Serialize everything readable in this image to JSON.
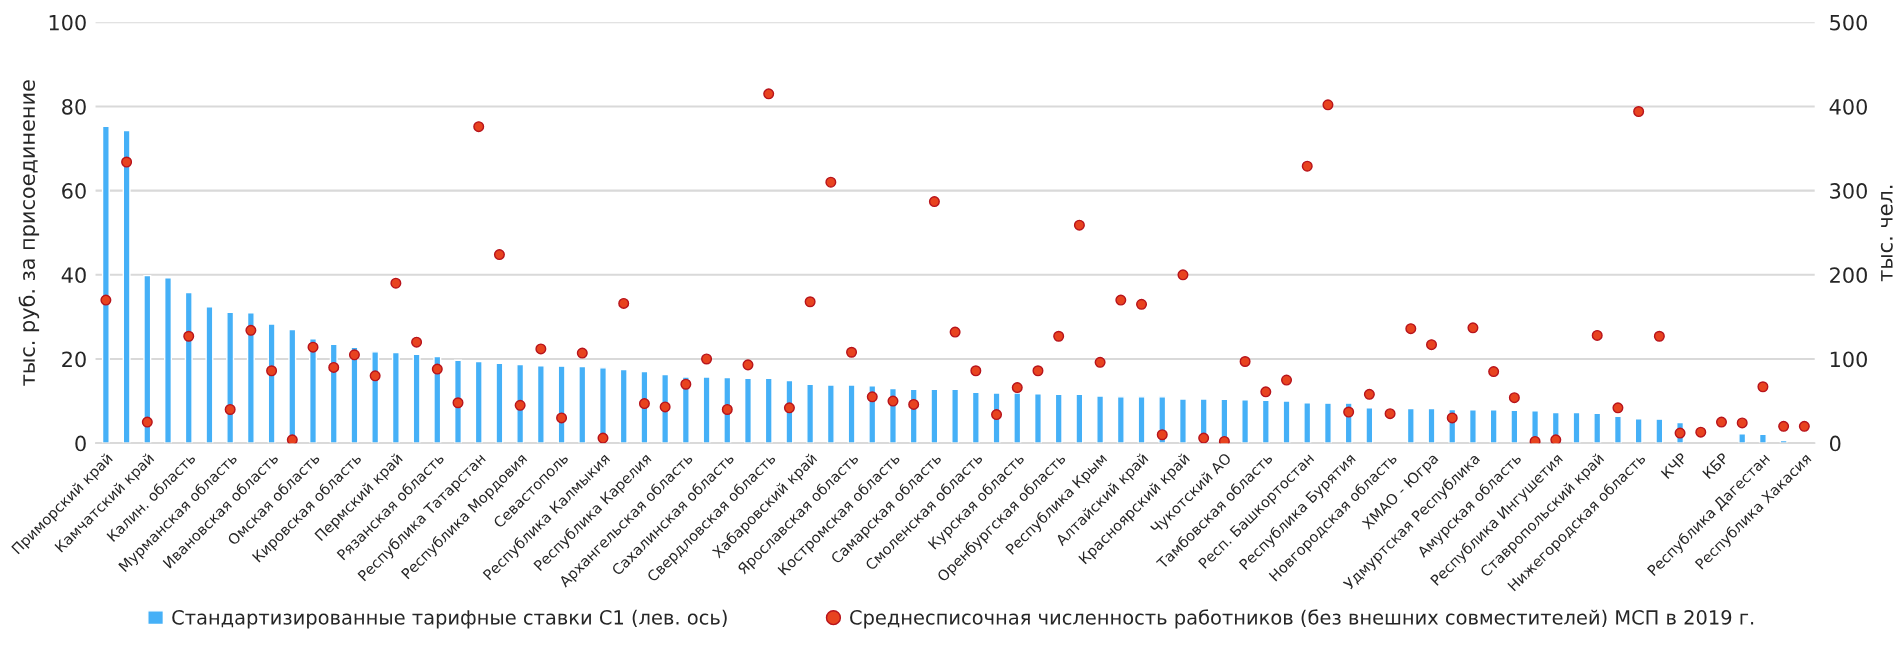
{
  "chart_data": {
    "type": "bar",
    "categories": [
      "Приморский край",
      null,
      "Камчатский край",
      null,
      "Калин. область",
      null,
      "Мурманская область",
      null,
      "Ивановская область",
      null,
      "Омская область",
      null,
      "Кировская область",
      null,
      "Пермский край",
      null,
      "Рязанская область",
      null,
      "Республика Татарстан",
      null,
      "Республика Мордовия",
      null,
      "Севастополь",
      null,
      "Республика Калмыкия",
      null,
      "Республика Карелия",
      null,
      "Архангельская область",
      null,
      "Сахалинская область",
      null,
      "Свердловская область",
      null,
      "Хабаровский край",
      null,
      "Ярославская область",
      null,
      "Костромская область",
      null,
      "Самарская область",
      null,
      "Смоленская область",
      null,
      "Курская область",
      null,
      "Оренбургская область",
      null,
      "Республика Крым",
      null,
      "Алтайский край",
      null,
      "Красноярский край",
      null,
      "Чукотский АО",
      null,
      "Тамбовская область",
      null,
      "Респ. Башкортостан",
      null,
      "Республика Бурятия",
      null,
      "Новгородская область",
      null,
      "ХМАО - Югра",
      null,
      "Удмуртская Республика",
      null,
      "Амурская область",
      null,
      "Республика Ингушетия",
      null,
      "Ставропольский край",
      null,
      "Нижегородская область",
      null,
      "КЧР",
      null,
      "КБР",
      null,
      "Республика Дагестан",
      null,
      "Республика Хакасия"
    ],
    "series": [
      {
        "name": "Стандартизированные тарифные ставки С1 (лев. ось)",
        "color": "#45b0f7",
        "values": [
          75.3,
          74.3,
          39.8,
          39.3,
          35.8,
          32.4,
          31.1,
          31.0,
          28.3,
          27.0,
          24.8,
          23.5,
          22.8,
          21.7,
          21.5,
          21.1,
          20.6,
          19.7,
          19.4,
          19.0,
          18.7,
          18.4,
          18.3,
          18.2,
          17.9,
          17.5,
          17.0,
          16.3,
          15.7,
          15.7,
          15.6,
          15.4,
          15.4,
          14.9,
          14.0,
          13.8,
          13.8,
          13.6,
          13.0,
          12.8,
          12.8,
          12.8,
          12.1,
          11.9,
          11.9,
          11.7,
          11.6,
          11.6,
          11.2,
          11.0,
          11.0,
          11.0,
          10.5,
          10.5,
          10.4,
          10.3,
          10.2,
          10.0,
          9.6,
          9.5,
          9.5,
          8.4,
          null,
          8.2,
          8.2,
          8.0,
          7.9,
          7.9,
          7.8,
          7.7,
          7.3,
          7.3,
          7.1,
          6.4,
          5.8,
          5.7,
          4.9,
          null,
          null,
          2.2,
          2.1,
          0.6,
          null
        ]
      },
      {
        "name": "Среднесписочная численность работников (без внешних совместителей) МСП в 2019 г.",
        "type": "scatter",
        "axis": "y2",
        "marker": "circle",
        "color": "#e8431f",
        "values": [
          170,
          334,
          25,
          null,
          127,
          null,
          40,
          134,
          86,
          4,
          114,
          90,
          105,
          80,
          190,
          120,
          88,
          48,
          376,
          224,
          45,
          112,
          30,
          107,
          6,
          166,
          47,
          43,
          70,
          100,
          40,
          93,
          415,
          42,
          168,
          310,
          108,
          55,
          50,
          46,
          287,
          132,
          86,
          34,
          66,
          86,
          127,
          259,
          96,
          170,
          165,
          10,
          200,
          6,
          2,
          97,
          61,
          75,
          329,
          402,
          37,
          58,
          35,
          136,
          117,
          30,
          137,
          85,
          54,
          2,
          4,
          null,
          128,
          42,
          394,
          127,
          12,
          13,
          25,
          24,
          67,
          20,
          20
        ]
      }
    ],
    "ylabel": "тыс. руб. за присоединение",
    "y2label": "тыс. чел.",
    "ylim": [
      0,
      100
    ],
    "yticks": [
      0,
      20,
      40,
      60,
      80,
      100
    ],
    "y2lim": [
      0,
      500
    ],
    "y2ticks": [
      0,
      100,
      200,
      300,
      400,
      500
    ],
    "grid": "y",
    "legend": "bottom"
  }
}
